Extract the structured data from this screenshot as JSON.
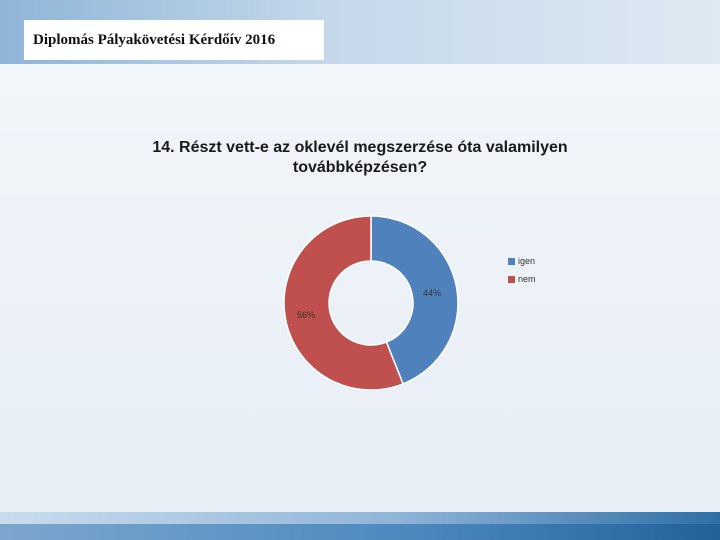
{
  "slide": {
    "title": "Diplomás Pályakövetési Kérdőív 2016"
  },
  "chart_data": {
    "type": "pie",
    "title": "14. Részt vett-e az oklevél megszerzése óta valamilyen továbbképzésen?",
    "donut": true,
    "categories": [
      "igen",
      "nem"
    ],
    "values": [
      44,
      56
    ],
    "labels": [
      "44%",
      "56%"
    ],
    "colors": [
      "#4f81bd",
      "#c0504d"
    ],
    "legend_position": "right"
  }
}
